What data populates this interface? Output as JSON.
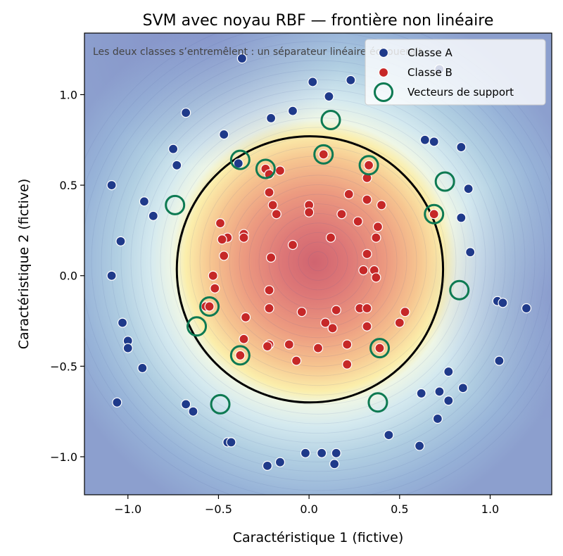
{
  "chart_data": {
    "type": "scatter",
    "title": "SVM avec noyau RBF — frontière non linéaire",
    "xlabel": "Caractéristique 1 (fictive)",
    "ylabel": "Caractéristique 2 (fictive)",
    "xlim": [
      -1.24,
      1.34
    ],
    "ylim": [
      -1.21,
      1.34
    ],
    "xticks": [
      -1.0,
      -0.5,
      0.0,
      0.5,
      1.0
    ],
    "yticks": [
      -1.0,
      -0.5,
      0.0,
      0.5,
      1.0
    ],
    "xtick_labels": [
      "−1.0",
      "−0.5",
      "0.0",
      "0.5",
      "1.0"
    ],
    "ytick_labels": [
      "−1.0",
      "−0.5",
      "0.0",
      "0.5",
      "1.0"
    ],
    "annotation": "Les deux classes s’entremêlent : un séparateur linéaire échouerait.",
    "legend_position": "top-right",
    "grid": false,
    "background": {
      "type": "filled-contour",
      "colormap": "RdYlBu",
      "peak_center": [
        0.05,
        0.08
      ]
    },
    "decision_boundary": {
      "shape": "closed-curve",
      "color": "#000000",
      "center": [
        0.0,
        0.0
      ],
      "x_extent": [
        -0.73,
        0.74
      ],
      "y_extent": [
        -0.7,
        0.77
      ]
    },
    "series": [
      {
        "name": "Classe A",
        "color": "#1f3a8a",
        "points": [
          [
            -0.37,
            1.2
          ],
          [
            0.02,
            1.07
          ],
          [
            0.11,
            0.99
          ],
          [
            0.23,
            1.08
          ],
          [
            0.72,
            1.14
          ],
          [
            -0.68,
            0.9
          ],
          [
            -0.09,
            0.91
          ],
          [
            -0.47,
            0.78
          ],
          [
            -0.21,
            0.87
          ],
          [
            -0.75,
            0.7
          ],
          [
            -0.73,
            0.61
          ],
          [
            -0.39,
            0.62
          ],
          [
            0.64,
            0.75
          ],
          [
            0.69,
            0.74
          ],
          [
            0.84,
            0.71
          ],
          [
            -1.09,
            0.5
          ],
          [
            -0.91,
            0.41
          ],
          [
            -0.86,
            0.33
          ],
          [
            0.88,
            0.48
          ],
          [
            0.84,
            0.32
          ],
          [
            -1.04,
            0.19
          ],
          [
            0.89,
            0.13
          ],
          [
            -1.09,
            0.0
          ],
          [
            -1.03,
            -0.26
          ],
          [
            -1.0,
            -0.36
          ],
          [
            -1.0,
            -0.4
          ],
          [
            -0.92,
            -0.51
          ],
          [
            1.04,
            -0.14
          ],
          [
            1.07,
            -0.15
          ],
          [
            1.2,
            -0.18
          ],
          [
            1.05,
            -0.47
          ],
          [
            -1.06,
            -0.7
          ],
          [
            -0.68,
            -0.71
          ],
          [
            -0.64,
            -0.75
          ],
          [
            0.77,
            -0.53
          ],
          [
            0.72,
            -0.64
          ],
          [
            0.62,
            -0.65
          ],
          [
            0.85,
            -0.62
          ],
          [
            0.77,
            -0.69
          ],
          [
            0.71,
            -0.79
          ],
          [
            0.44,
            -0.88
          ],
          [
            0.61,
            -0.94
          ],
          [
            -0.45,
            -0.92
          ],
          [
            -0.43,
            -0.92
          ],
          [
            -0.23,
            -1.05
          ],
          [
            -0.16,
            -1.03
          ],
          [
            -0.02,
            -0.98
          ],
          [
            0.07,
            -0.98
          ],
          [
            0.15,
            -0.98
          ],
          [
            0.14,
            -1.04
          ]
        ]
      },
      {
        "name": "Classe B",
        "color": "#c62828",
        "points": [
          [
            0.08,
            0.67
          ],
          [
            -0.24,
            0.59
          ],
          [
            -0.22,
            0.56
          ],
          [
            -0.16,
            0.58
          ],
          [
            0.33,
            0.61
          ],
          [
            0.32,
            0.54
          ],
          [
            -0.22,
            0.46
          ],
          [
            0.22,
            0.45
          ],
          [
            0.0,
            0.39
          ],
          [
            -0.2,
            0.39
          ],
          [
            0.32,
            0.42
          ],
          [
            0.4,
            0.39
          ],
          [
            -0.18,
            0.34
          ],
          [
            0.0,
            0.35
          ],
          [
            0.18,
            0.34
          ],
          [
            0.27,
            0.3
          ],
          [
            -0.49,
            0.29
          ],
          [
            0.69,
            0.34
          ],
          [
            -0.36,
            0.23
          ],
          [
            -0.45,
            0.21
          ],
          [
            -0.48,
            0.2
          ],
          [
            -0.36,
            0.21
          ],
          [
            0.38,
            0.27
          ],
          [
            0.12,
            0.21
          ],
          [
            0.37,
            0.21
          ],
          [
            -0.09,
            0.17
          ],
          [
            0.32,
            0.12
          ],
          [
            -0.47,
            0.11
          ],
          [
            -0.21,
            0.1
          ],
          [
            0.3,
            0.03
          ],
          [
            0.36,
            0.03
          ],
          [
            0.37,
            -0.01
          ],
          [
            -0.53,
            0.0
          ],
          [
            -0.52,
            -0.07
          ],
          [
            -0.22,
            -0.08
          ],
          [
            -0.57,
            -0.17
          ],
          [
            -0.22,
            -0.18
          ],
          [
            -0.04,
            -0.2
          ],
          [
            0.15,
            -0.19
          ],
          [
            0.28,
            -0.18
          ],
          [
            0.32,
            -0.18
          ],
          [
            0.53,
            -0.2
          ],
          [
            -0.35,
            -0.23
          ],
          [
            0.09,
            -0.26
          ],
          [
            0.13,
            -0.29
          ],
          [
            0.32,
            -0.28
          ],
          [
            0.5,
            -0.26
          ],
          [
            -0.36,
            -0.35
          ],
          [
            -0.22,
            -0.38
          ],
          [
            -0.23,
            -0.39
          ],
          [
            -0.11,
            -0.38
          ],
          [
            0.05,
            -0.4
          ],
          [
            0.21,
            -0.38
          ],
          [
            0.39,
            -0.4
          ],
          [
            -0.38,
            -0.44
          ],
          [
            -0.07,
            -0.47
          ],
          [
            0.21,
            -0.49
          ],
          [
            -0.55,
            -0.17
          ]
        ]
      },
      {
        "name": "Vecteurs de support",
        "color": "#0e7a52",
        "points": [
          [
            0.12,
            0.86
          ],
          [
            0.08,
            0.67
          ],
          [
            -0.38,
            0.64
          ],
          [
            -0.24,
            0.59
          ],
          [
            0.33,
            0.61
          ],
          [
            0.75,
            0.52
          ],
          [
            -0.74,
            0.39
          ],
          [
            0.69,
            0.34
          ],
          [
            0.83,
            -0.08
          ],
          [
            -0.55,
            -0.17
          ],
          [
            -0.62,
            -0.28
          ],
          [
            -0.38,
            -0.44
          ],
          [
            0.39,
            -0.4
          ],
          [
            -0.49,
            -0.71
          ],
          [
            0.38,
            -0.7
          ]
        ]
      }
    ]
  }
}
